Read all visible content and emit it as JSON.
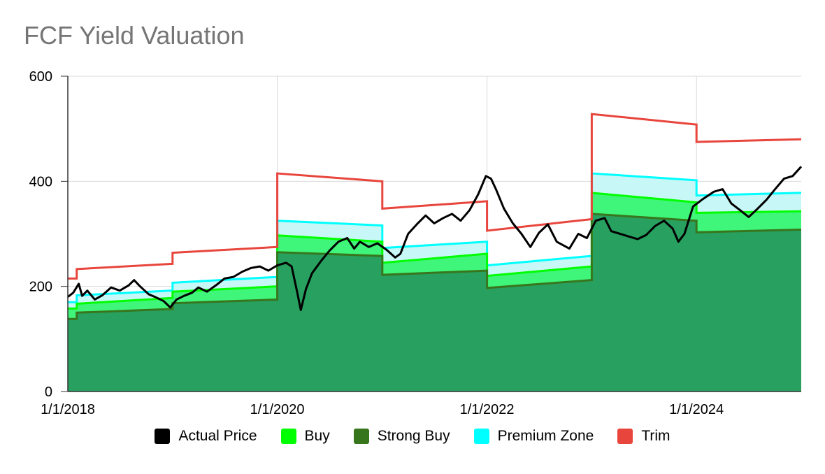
{
  "chart_data": {
    "type": "area",
    "title": "FCF Yield Valuation",
    "xlabel": "",
    "ylabel": "",
    "ylim": [
      0,
      600
    ],
    "xlim": [
      "2018-01-01",
      "2024-12-31"
    ],
    "y_ticks": [
      "0",
      "200",
      "400",
      "600"
    ],
    "x_ticks": [
      {
        "date": "2018-01-01",
        "label": "1/1/2018"
      },
      {
        "date": "2020-01-01",
        "label": "1/1/2020"
      },
      {
        "date": "2022-01-01",
        "label": "1/1/2022"
      },
      {
        "date": "2024-01-01",
        "label": "1/1/2024"
      }
    ],
    "grid": "vertical",
    "legend_position": "bottom",
    "series": [
      {
        "name": "Actual Price",
        "color": "#000000",
        "points": [
          [
            "2018-01-01",
            180
          ],
          [
            "2018-01-20",
            188
          ],
          [
            "2018-02-08",
            205
          ],
          [
            "2018-02-20",
            182
          ],
          [
            "2018-03-10",
            192
          ],
          [
            "2018-04-05",
            175
          ],
          [
            "2018-05-01",
            183
          ],
          [
            "2018-06-01",
            198
          ],
          [
            "2018-07-01",
            192
          ],
          [
            "2018-08-01",
            202
          ],
          [
            "2018-08-20",
            212
          ],
          [
            "2018-09-10",
            200
          ],
          [
            "2018-10-10",
            185
          ],
          [
            "2018-11-01",
            180
          ],
          [
            "2018-12-01",
            172
          ],
          [
            "2018-12-24",
            160
          ],
          [
            "2019-01-15",
            175
          ],
          [
            "2019-02-10",
            182
          ],
          [
            "2019-03-10",
            188
          ],
          [
            "2019-04-01",
            198
          ],
          [
            "2019-05-01",
            190
          ],
          [
            "2019-06-01",
            202
          ],
          [
            "2019-07-01",
            215
          ],
          [
            "2019-08-01",
            218
          ],
          [
            "2019-09-01",
            228
          ],
          [
            "2019-10-01",
            235
          ],
          [
            "2019-11-01",
            238
          ],
          [
            "2019-12-01",
            230
          ],
          [
            "2020-01-01",
            240
          ],
          [
            "2020-02-01",
            245
          ],
          [
            "2020-02-20",
            238
          ],
          [
            "2020-03-10",
            190
          ],
          [
            "2020-03-23",
            155
          ],
          [
            "2020-04-10",
            195
          ],
          [
            "2020-05-01",
            225
          ],
          [
            "2020-06-01",
            248
          ],
          [
            "2020-07-01",
            268
          ],
          [
            "2020-08-01",
            285
          ],
          [
            "2020-09-01",
            292
          ],
          [
            "2020-09-25",
            272
          ],
          [
            "2020-10-15",
            285
          ],
          [
            "2020-11-15",
            275
          ],
          [
            "2020-12-15",
            282
          ],
          [
            "2021-01-15",
            270
          ],
          [
            "2021-02-15",
            255
          ],
          [
            "2021-03-05",
            262
          ],
          [
            "2021-04-01",
            300
          ],
          [
            "2021-05-01",
            318
          ],
          [
            "2021-06-01",
            335
          ],
          [
            "2021-07-01",
            320
          ],
          [
            "2021-08-01",
            330
          ],
          [
            "2021-09-01",
            338
          ],
          [
            "2021-10-01",
            325
          ],
          [
            "2021-11-01",
            345
          ],
          [
            "2021-12-01",
            375
          ],
          [
            "2021-12-28",
            410
          ],
          [
            "2022-01-15",
            405
          ],
          [
            "2022-02-01",
            385
          ],
          [
            "2022-03-01",
            348
          ],
          [
            "2022-04-01",
            320
          ],
          [
            "2022-05-01",
            300
          ],
          [
            "2022-06-01",
            275
          ],
          [
            "2022-07-01",
            302
          ],
          [
            "2022-08-01",
            318
          ],
          [
            "2022-09-01",
            285
          ],
          [
            "2022-10-15",
            272
          ],
          [
            "2022-11-15",
            300
          ],
          [
            "2022-12-15",
            292
          ],
          [
            "2023-01-15",
            325
          ],
          [
            "2023-02-15",
            330
          ],
          [
            "2023-03-10",
            305
          ],
          [
            "2023-04-10",
            300
          ],
          [
            "2023-05-10",
            295
          ],
          [
            "2023-06-10",
            290
          ],
          [
            "2023-07-10",
            298
          ],
          [
            "2023-08-10",
            315
          ],
          [
            "2023-09-10",
            325
          ],
          [
            "2023-10-10",
            310
          ],
          [
            "2023-10-30",
            285
          ],
          [
            "2023-11-20",
            300
          ],
          [
            "2023-12-20",
            352
          ],
          [
            "2024-01-20",
            365
          ],
          [
            "2024-03-01",
            380
          ],
          [
            "2024-04-01",
            385
          ],
          [
            "2024-05-01",
            358
          ],
          [
            "2024-06-01",
            345
          ],
          [
            "2024-07-01",
            332
          ],
          [
            "2024-08-01",
            348
          ],
          [
            "2024-09-01",
            365
          ],
          [
            "2024-10-01",
            385
          ],
          [
            "2024-11-01",
            405
          ],
          [
            "2024-12-01",
            410
          ],
          [
            "2024-12-31",
            428
          ]
        ]
      },
      {
        "name": "Buy",
        "color": "#00ff00",
        "points": [
          [
            "2018-01-01",
            158
          ],
          [
            "2018-02-01",
            158
          ],
          [
            "2018-02-01",
            167
          ],
          [
            "2018-12-31",
            178
          ],
          [
            "2019-01-01",
            178
          ],
          [
            "2019-01-01",
            190
          ],
          [
            "2019-12-31",
            200
          ],
          [
            "2020-01-01",
            200
          ],
          [
            "2020-01-01",
            297
          ],
          [
            "2020-12-31",
            285
          ],
          [
            "2021-01-01",
            285
          ],
          [
            "2021-01-01",
            245
          ],
          [
            "2021-12-31",
            262
          ],
          [
            "2022-01-01",
            262
          ],
          [
            "2022-01-01",
            220
          ],
          [
            "2022-12-31",
            238
          ],
          [
            "2023-01-01",
            238
          ],
          [
            "2023-01-01",
            378
          ],
          [
            "2023-12-31",
            360
          ],
          [
            "2024-01-01",
            360
          ],
          [
            "2024-01-01",
            340
          ],
          [
            "2024-12-31",
            343
          ]
        ]
      },
      {
        "name": "Strong Buy",
        "color": "#38761d",
        "points": [
          [
            "2018-01-01",
            138
          ],
          [
            "2018-02-01",
            138
          ],
          [
            "2018-02-01",
            150
          ],
          [
            "2018-12-31",
            157
          ],
          [
            "2019-01-01",
            157
          ],
          [
            "2019-01-01",
            168
          ],
          [
            "2019-12-31",
            175
          ],
          [
            "2020-01-01",
            175
          ],
          [
            "2020-01-01",
            265
          ],
          [
            "2020-12-31",
            258
          ],
          [
            "2021-01-01",
            258
          ],
          [
            "2021-01-01",
            222
          ],
          [
            "2021-12-31",
            230
          ],
          [
            "2022-01-01",
            230
          ],
          [
            "2022-01-01",
            197
          ],
          [
            "2022-12-31",
            212
          ],
          [
            "2023-01-01",
            212
          ],
          [
            "2023-01-01",
            338
          ],
          [
            "2023-12-31",
            325
          ],
          [
            "2024-01-01",
            325
          ],
          [
            "2024-01-01",
            303
          ],
          [
            "2024-12-31",
            308
          ]
        ]
      },
      {
        "name": "Premium Zone",
        "color": "#00ffff",
        "points": [
          [
            "2018-01-01",
            170
          ],
          [
            "2018-02-01",
            170
          ],
          [
            "2018-02-01",
            183
          ],
          [
            "2018-12-31",
            192
          ],
          [
            "2019-01-01",
            192
          ],
          [
            "2019-01-01",
            207
          ],
          [
            "2019-12-31",
            218
          ],
          [
            "2020-01-01",
            218
          ],
          [
            "2020-01-01",
            325
          ],
          [
            "2020-12-31",
            316
          ],
          [
            "2021-01-01",
            316
          ],
          [
            "2021-01-01",
            273
          ],
          [
            "2021-12-31",
            285
          ],
          [
            "2022-01-01",
            285
          ],
          [
            "2022-01-01",
            240
          ],
          [
            "2022-12-31",
            258
          ],
          [
            "2023-01-01",
            258
          ],
          [
            "2023-01-01",
            415
          ],
          [
            "2023-12-31",
            402
          ],
          [
            "2024-01-01",
            402
          ],
          [
            "2024-01-01",
            373
          ],
          [
            "2024-12-31",
            378
          ]
        ]
      },
      {
        "name": "Trim",
        "color": "#e8453c",
        "points": [
          [
            "2018-01-01",
            215
          ],
          [
            "2018-02-01",
            215
          ],
          [
            "2018-02-01",
            233
          ],
          [
            "2018-12-31",
            243
          ],
          [
            "2019-01-01",
            243
          ],
          [
            "2019-01-01",
            264
          ],
          [
            "2019-12-31",
            275
          ],
          [
            "2020-01-01",
            275
          ],
          [
            "2020-01-01",
            415
          ],
          [
            "2020-12-31",
            400
          ],
          [
            "2021-01-01",
            400
          ],
          [
            "2021-01-01",
            348
          ],
          [
            "2021-12-31",
            362
          ],
          [
            "2022-01-01",
            362
          ],
          [
            "2022-01-01",
            306
          ],
          [
            "2022-12-31",
            328
          ],
          [
            "2023-01-01",
            328
          ],
          [
            "2023-01-01",
            528
          ],
          [
            "2023-12-31",
            508
          ],
          [
            "2024-01-01",
            508
          ],
          [
            "2024-01-01",
            475
          ],
          [
            "2024-12-31",
            480
          ]
        ]
      }
    ]
  },
  "legend": [
    {
      "label": "Actual Price",
      "color": "#000000"
    },
    {
      "label": "Buy",
      "color": "#00ff00"
    },
    {
      "label": "Strong Buy",
      "color": "#38761d"
    },
    {
      "label": "Premium Zone",
      "color": "#00ffff"
    },
    {
      "label": "Trim",
      "color": "#e8453c"
    }
  ]
}
